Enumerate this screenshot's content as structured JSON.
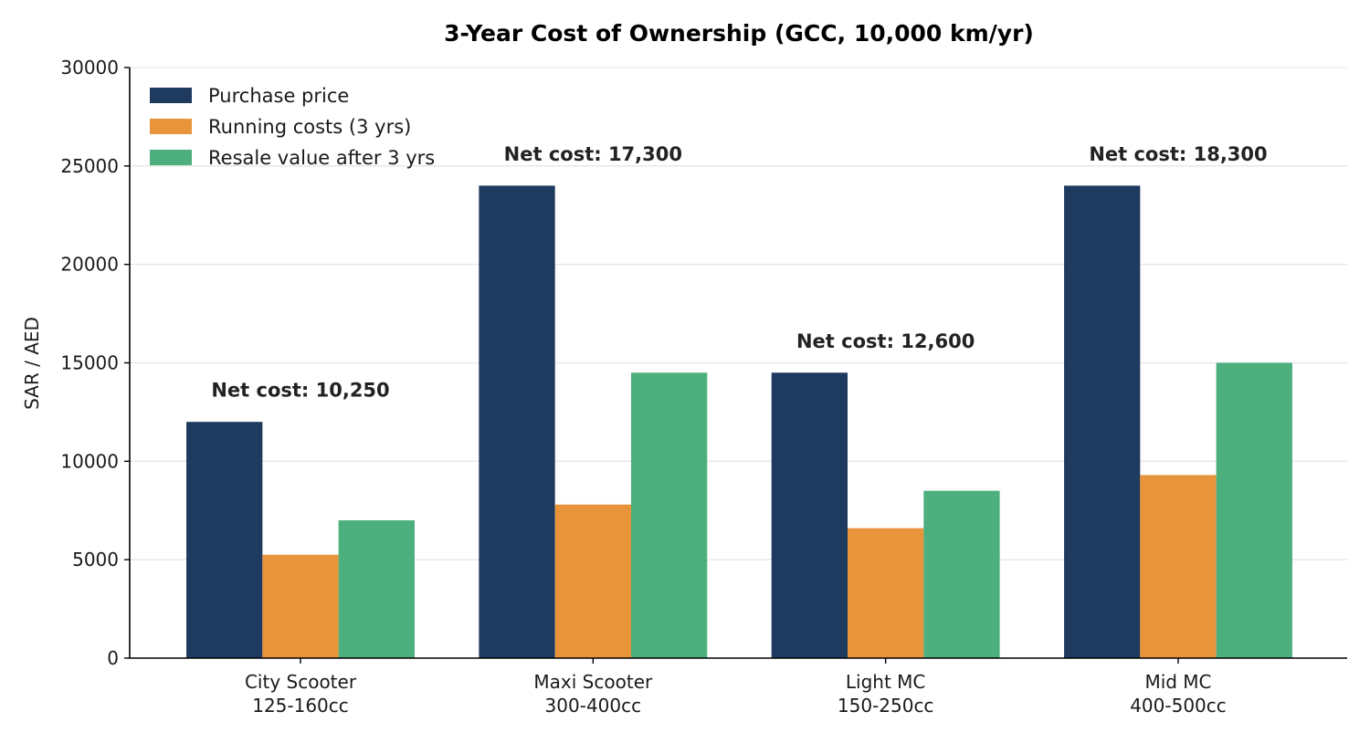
{
  "chart_data": {
    "type": "bar",
    "title": "3-Year Cost of Ownership (GCC, 10,000 km/yr)",
    "xlabel": "",
    "ylabel": "SAR / AED",
    "ylim": [
      0,
      30000
    ],
    "yticks": [
      "0",
      "5000",
      "10000",
      "15000",
      "20000",
      "25000",
      "30000"
    ],
    "grid": "horizontal",
    "legend_position": "top-left",
    "categories": [
      [
        "City Scooter",
        "125-160cc"
      ],
      [
        "Maxi Scooter",
        "300-400cc"
      ],
      [
        "Light MC",
        "150-250cc"
      ],
      [
        "Mid MC",
        "400-500cc"
      ]
    ],
    "series": [
      {
        "name": "Purchase price",
        "color": "#1f3a5f",
        "values": [
          12000,
          24000,
          14500,
          24000
        ]
      },
      {
        "name": "Running costs (3 yrs)",
        "color": "#e8943a",
        "values": [
          5250,
          7800,
          6600,
          9300
        ]
      },
      {
        "name": "Resale value after 3 yrs",
        "color": "#4caf7d",
        "values": [
          7000,
          14500,
          8500,
          15000
        ]
      }
    ],
    "annotations": [
      {
        "text": "Net cost: 10,250",
        "y": 13600
      },
      {
        "text": "Net cost: 17,300",
        "y": 25600
      },
      {
        "text": "Net cost: 12,600",
        "y": 16100
      },
      {
        "text": "Net cost: 18,300",
        "y": 25600
      }
    ]
  }
}
